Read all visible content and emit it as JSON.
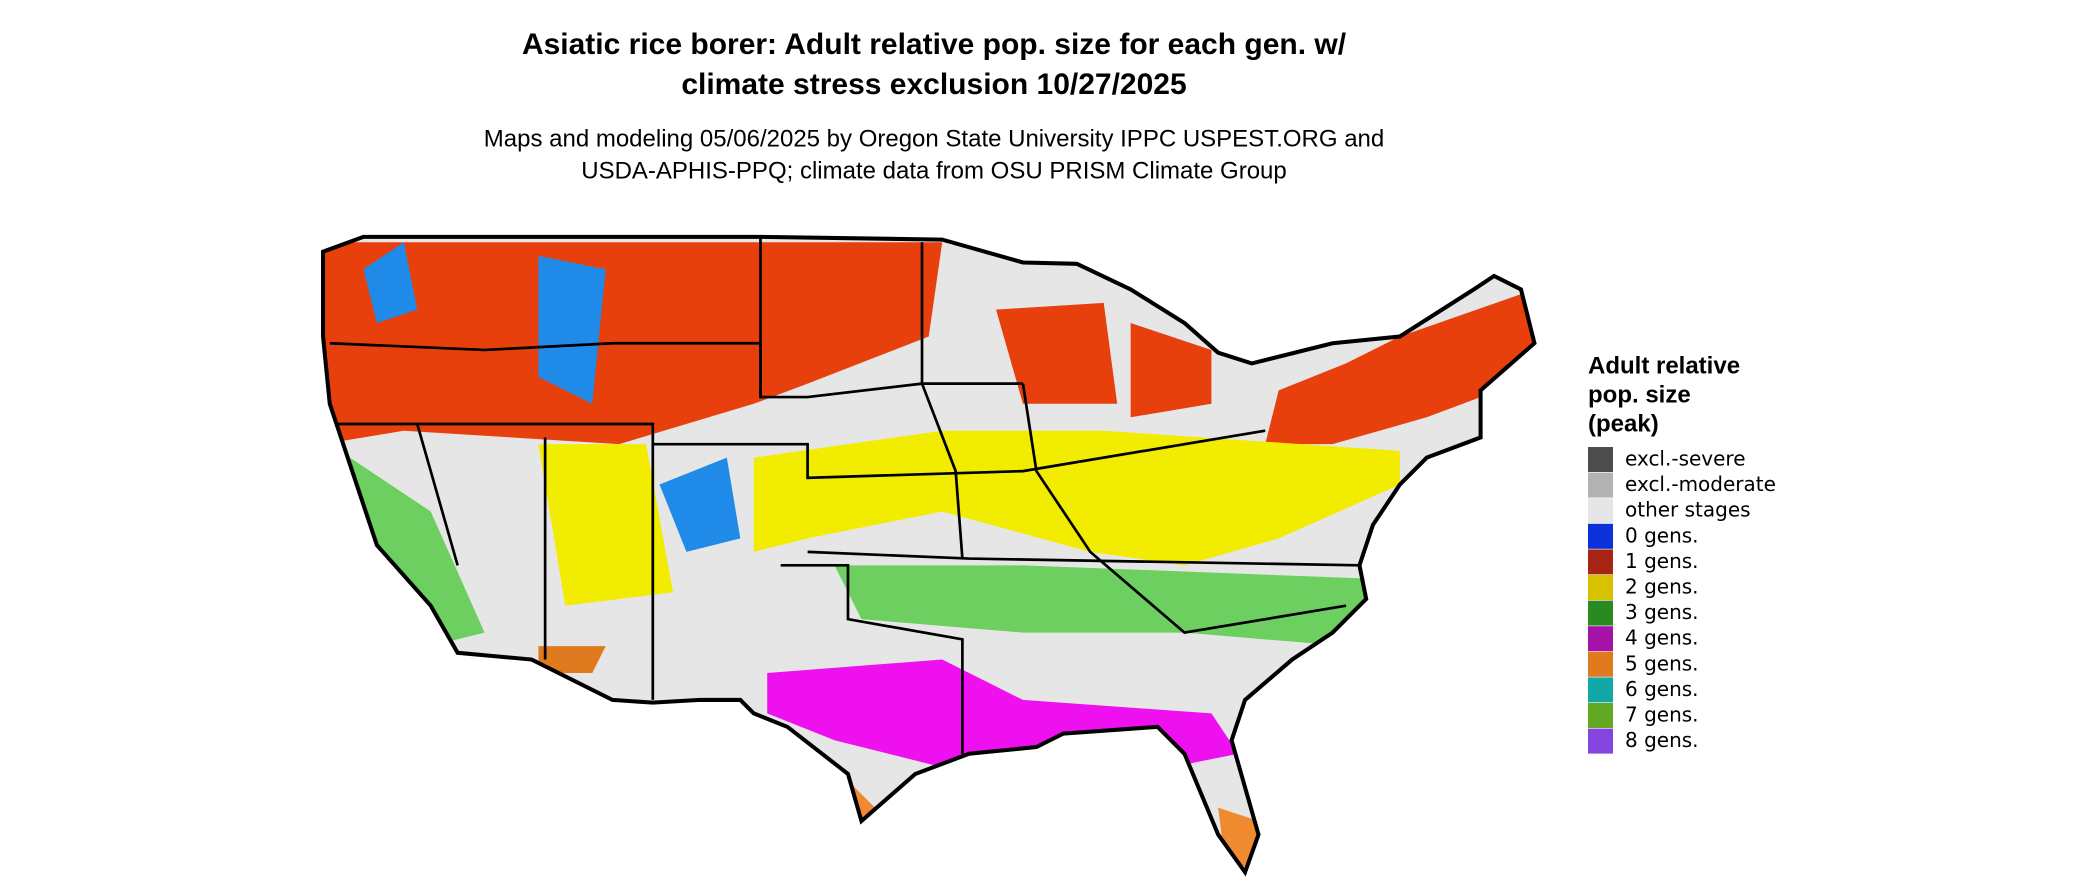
{
  "header": {
    "title_lines": [
      "Asiatic rice borer: Adult relative pop. size for each gen. w/",
      "climate stress exclusion 10/27/2025"
    ],
    "subtitle_lines": [
      "Maps and modeling 05/06/2025 by Oregon State University IPPC USPEST.ORG and",
      "USDA-APHIS-PPQ; climate data from OSU PRISM Climate Group"
    ]
  },
  "legend": {
    "title_lines": [
      "Adult relative",
      "pop. size",
      "(peak)"
    ],
    "items": [
      {
        "label": "excl.-severe",
        "color": "#4d4d4d"
      },
      {
        "label": "excl.-moderate",
        "color": "#b3b3b3"
      },
      {
        "label": "other stages",
        "color": "#e6e6e6"
      },
      {
        "label": "0 gens.",
        "color": "#0a32d8"
      },
      {
        "label": "1 gens.",
        "color": "#a82414"
      },
      {
        "label": "2 gens.",
        "color": "#d8c200"
      },
      {
        "label": "3 gens.",
        "color": "#2a8a22"
      },
      {
        "label": "4 gens.",
        "color": "#a412a8"
      },
      {
        "label": "5 gens.",
        "color": "#e07a1e"
      },
      {
        "label": "6 gens.",
        "color": "#12a8a8"
      },
      {
        "label": "7 gens.",
        "color": "#62a822"
      },
      {
        "label": "8 gens.",
        "color": "#8444e0"
      }
    ]
  }
}
